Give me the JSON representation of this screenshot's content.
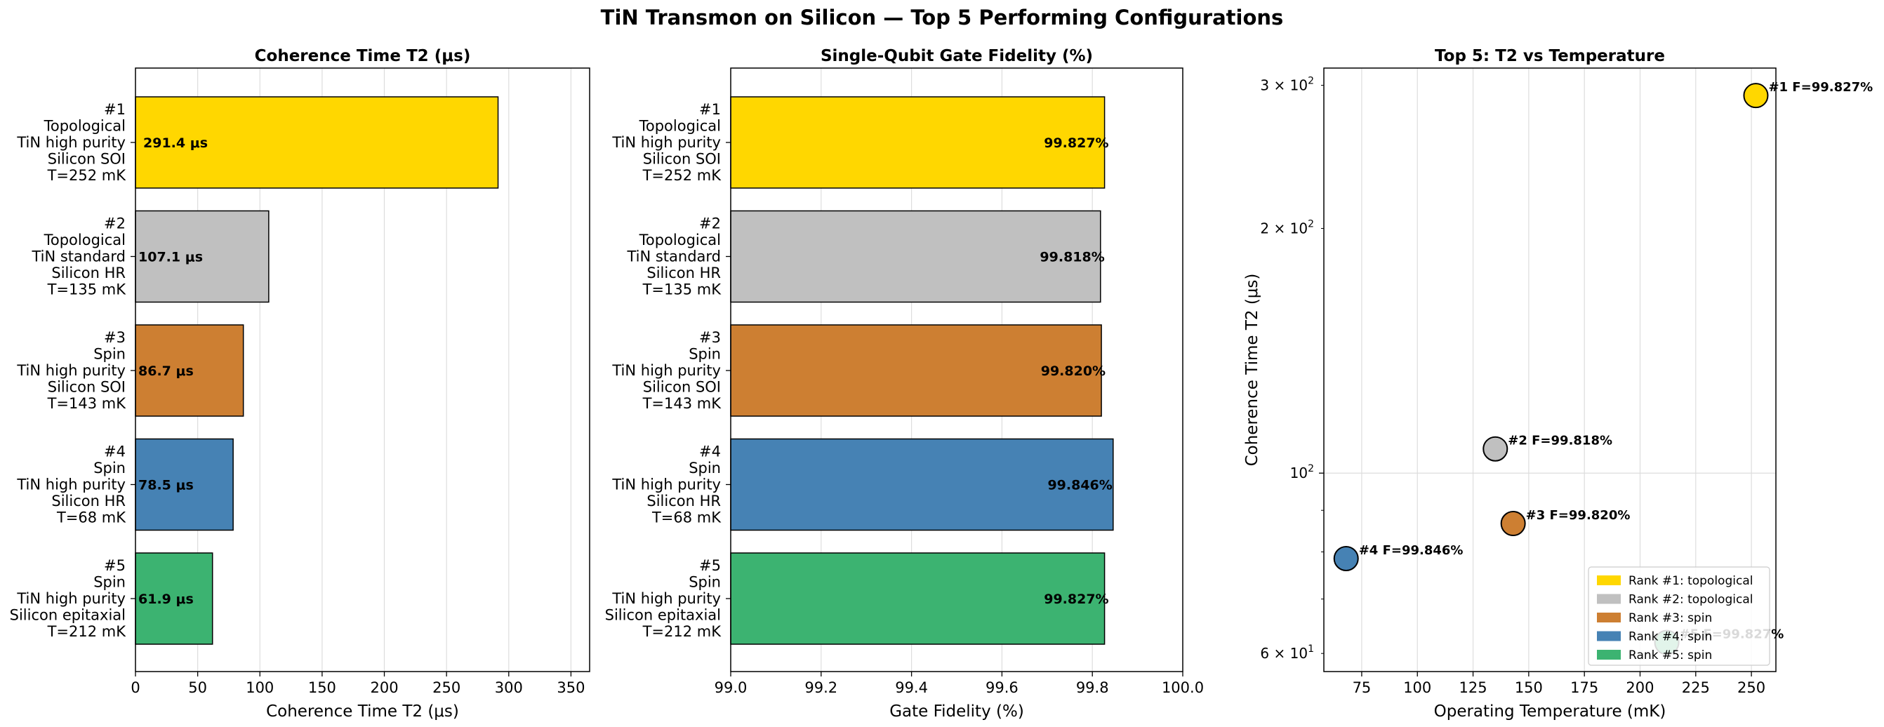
{
  "suptitle": "TiN Transmon on Silicon — Top 5 Performing Configurations",
  "colors": {
    "rank1": "#FFD700",
    "rank2": "#C0C0C0",
    "rank3": "#CD7F32",
    "rank4": "#4682B4",
    "rank5": "#3CB371",
    "grid": "#dddddd",
    "edge": "#000000"
  },
  "chart_data": [
    {
      "type": "bar",
      "orientation": "horizontal",
      "title": "Coherence Time T2 (μs)",
      "xlabel": "Coherence Time T2 (μs)",
      "ylabel": "",
      "xlim": [
        0,
        365
      ],
      "xticks": [
        0,
        50,
        100,
        150,
        200,
        250,
        300,
        350
      ],
      "grid": "x",
      "categories": [
        [
          "#1",
          "Topological",
          "TiN high purity",
          "Silicon SOI",
          "T=252 mK"
        ],
        [
          "#2",
          "Topological",
          "TiN standard",
          "Silicon HR",
          "T=135 mK"
        ],
        [
          "#3",
          "Spin",
          "TiN high purity",
          "Silicon SOI",
          "T=143 mK"
        ],
        [
          "#4",
          "Spin",
          "TiN high purity",
          "Silicon HR",
          "T=68 mK"
        ],
        [
          "#5",
          "Spin",
          "TiN high purity",
          "Silicon epitaxial",
          "T=212 mK"
        ]
      ],
      "values": [
        291.4,
        107.1,
        86.7,
        78.5,
        61.9
      ],
      "data_labels": [
        "291.4 μs",
        "107.1 μs",
        "86.7 μs",
        "78.5 μs",
        "61.9 μs"
      ]
    },
    {
      "type": "bar",
      "orientation": "horizontal",
      "title": "Single-Qubit Gate Fidelity (%)",
      "xlabel": "Gate Fidelity (%)",
      "ylabel": "",
      "xlim": [
        99.0,
        100.0
      ],
      "xticks": [
        "99.0",
        "99.2",
        "99.4",
        "99.6",
        "99.8",
        "100.0"
      ],
      "grid": "x",
      "categories": [
        [
          "#1",
          "Topological",
          "TiN high purity",
          "Silicon SOI",
          "T=252 mK"
        ],
        [
          "#2",
          "Topological",
          "TiN standard",
          "Silicon HR",
          "T=135 mK"
        ],
        [
          "#3",
          "Spin",
          "TiN high purity",
          "Silicon SOI",
          "T=143 mK"
        ],
        [
          "#4",
          "Spin",
          "TiN high purity",
          "Silicon HR",
          "T=68 mK"
        ],
        [
          "#5",
          "Spin",
          "TiN high purity",
          "Silicon epitaxial",
          "T=212 mK"
        ]
      ],
      "values": [
        99.827,
        99.818,
        99.82,
        99.846,
        99.827
      ],
      "data_labels": [
        "99.827%",
        "99.818%",
        "99.820%",
        "99.846%",
        "99.827%"
      ]
    },
    {
      "type": "scatter",
      "title": "Top 5: T2 vs Temperature",
      "xlabel": "Operating Temperature (mK)",
      "ylabel": "Coherence Time T2 (μs)",
      "xlim": [
        58,
        261
      ],
      "xticks": [
        75,
        100,
        125,
        150,
        175,
        200,
        225,
        250
      ],
      "yscale": "log",
      "ylim": [
        57,
        315
      ],
      "yticks": [
        {
          "value": 60,
          "base": "6 × 10",
          "exp": "1"
        },
        {
          "value": 100,
          "base": "10",
          "exp": "2"
        },
        {
          "value": 200,
          "base": "2 × 10",
          "exp": "2"
        },
        {
          "value": 300,
          "base": "3 × 10",
          "exp": "2"
        }
      ],
      "grid": "both",
      "legend_position": "lower-right",
      "points": [
        {
          "x": 252,
          "y": 291.4,
          "label": "#1  F=99.827%",
          "legend": "Rank #1: topological"
        },
        {
          "x": 135,
          "y": 107.1,
          "label": "#2  F=99.818%",
          "legend": "Rank #2: topological"
        },
        {
          "x": 143,
          "y": 86.7,
          "label": "#3  F=99.820%",
          "legend": "Rank #3: spin"
        },
        {
          "x": 68,
          "y": 78.5,
          "label": "#4  F=99.846%",
          "legend": "Rank #4: spin"
        },
        {
          "x": 212,
          "y": 61.9,
          "label": "#5  F=99.827%",
          "legend": "Rank #5: spin"
        }
      ]
    }
  ]
}
